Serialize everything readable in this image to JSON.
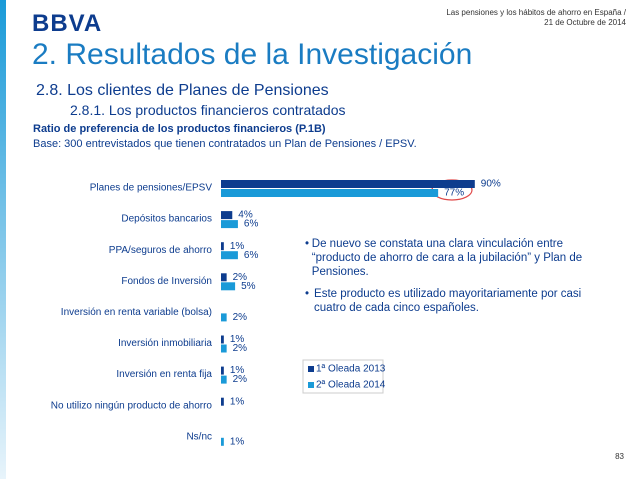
{
  "header": {
    "logo": "BBVA",
    "note_line1": "Las pensiones y los hábitos de ahorro en España /",
    "note_line2": "21 de Octubre de 2014"
  },
  "title": "2. Resultados de la Investigación",
  "section": "2.8. Los clientes de Planes de Pensiones",
  "subsection": "2.8.1. Los productos financieros contratados",
  "bullets": [
    "De nuevo se constata una clara vinculación entre “producto de ahorro de cara a la jubilación” y Plan de Pensiones.",
    "Este producto es utilizado mayoritariamente por casi cuatro de cada cinco españoles."
  ],
  "page_number": "83",
  "chart_data": {
    "type": "bar",
    "orientation": "horizontal",
    "title": "Ratio de preferencia de los productos financieros (P.1B)",
    "subtitle": "Base: 300 entrevistados que tienen contratados un Plan de Pensiones / EPSV.",
    "categories": [
      "Planes de pensiones/EPSV",
      "Depósitos bancarios",
      "PPA/seguros de ahorro",
      "Fondos de Inversión",
      "Inversión en renta variable (bolsa)",
      "Inversión inmobiliaria",
      "Inversión en renta fija",
      "No utilizo ningún producto de ahorro",
      "Ns/nc"
    ],
    "series": [
      {
        "name": "1ª Oleada 2013",
        "color": "#0d3c8e",
        "values": [
          90,
          4,
          1,
          2,
          null,
          1,
          1,
          1,
          null
        ],
        "value_labels": [
          "90%",
          "4%",
          "1%",
          "2%",
          null,
          "1%",
          "1%",
          "1%",
          null
        ]
      },
      {
        "name": "2ª Oleada 2014",
        "color": "#1a9ad8",
        "values": [
          77,
          6,
          6,
          5,
          2,
          2,
          2,
          null,
          1
        ],
        "value_labels": [
          "77%",
          "6%",
          "6%",
          "5%",
          "2%",
          "2%",
          "2%",
          null,
          "1%"
        ]
      }
    ]
  }
}
